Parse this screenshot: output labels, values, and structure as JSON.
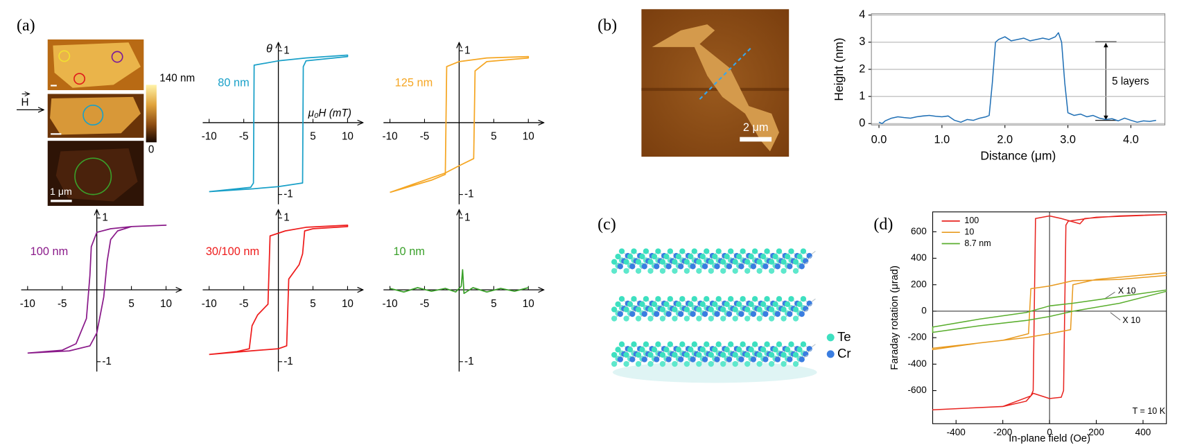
{
  "panels": [
    "(a)",
    "(b)",
    "(c)",
    "(d)"
  ],
  "afm_a": {
    "colorbar_max": "140 nm",
    "colorbar_min": "0",
    "field": "H",
    "scale_bar": "1 μm"
  },
  "afm_b": {
    "scale_bar": "2 μm"
  },
  "structure_c": {
    "atoms": [
      "Te",
      "Cr"
    ]
  },
  "chart_data": [
    {
      "type": "line",
      "x_label": "μ₀H (mT)",
      "y_label": "θ",
      "xlim": [
        -10,
        10
      ],
      "ylim": [
        -1,
        1
      ],
      "xticks": [
        -10,
        -5,
        5,
        10
      ],
      "yticks": [
        1,
        -1
      ],
      "series": [
        {
          "name": "80 nm",
          "color": "#19a0c8",
          "x": [
            -10,
            -3.6,
            0,
            3.5,
            3.6,
            4,
            10,
            10,
            4,
            0,
            -3.5,
            -3.6,
            -4,
            -10
          ],
          "values": [
            -0.96,
            -0.92,
            -0.89,
            -0.84,
            0.78,
            0.86,
            0.92,
            0.94,
            0.9,
            0.86,
            0.8,
            -0.84,
            -0.9,
            -0.96
          ]
        }
      ]
    },
    {
      "type": "line",
      "xlim": [
        -10,
        10
      ],
      "ylim": [
        -1,
        1
      ],
      "xticks": [
        -10,
        -5,
        5,
        10
      ],
      "yticks": [
        1,
        -1
      ],
      "series": [
        {
          "name": "125 nm",
          "color": "#f5a623",
          "x": [
            -10,
            -2,
            0,
            2.1,
            2.3,
            4,
            10,
            10,
            4,
            0,
            -1.8,
            -2,
            -4,
            -10
          ],
          "values": [
            -0.97,
            -0.7,
            -0.6,
            -0.5,
            0.72,
            0.85,
            0.9,
            0.92,
            0.9,
            0.85,
            0.78,
            -0.72,
            -0.8,
            -0.97
          ]
        }
      ]
    },
    {
      "type": "line",
      "xlim": [
        -10,
        10
      ],
      "ylim": [
        -1,
        1
      ],
      "xticks": [
        -10,
        -5,
        5,
        10
      ],
      "yticks": [
        1,
        -1
      ],
      "series": [
        {
          "name": "100 nm",
          "color": "#8a1a8a",
          "x": [
            -10,
            -4,
            -1,
            0,
            1,
            1.5,
            2,
            3,
            5,
            10,
            10,
            5,
            2,
            0,
            -0.8,
            -1,
            -1.5,
            -3,
            -5,
            -10
          ],
          "values": [
            -0.88,
            -0.85,
            -0.78,
            -0.6,
            -0.1,
            0.4,
            0.7,
            0.82,
            0.88,
            0.9,
            0.9,
            0.88,
            0.85,
            0.8,
            0.6,
            0.2,
            -0.4,
            -0.75,
            -0.84,
            -0.88
          ]
        }
      ]
    },
    {
      "type": "line",
      "xlim": [
        -10,
        10
      ],
      "ylim": [
        -1,
        1
      ],
      "xticks": [
        -10,
        -5,
        5,
        10
      ],
      "yticks": [
        1,
        -1
      ],
      "series": [
        {
          "name": "30/100 nm",
          "color": "#ee1c1c",
          "x": [
            -10,
            -4,
            0,
            1.2,
            1.5,
            3,
            3.5,
            3.8,
            5,
            10,
            10,
            4,
            1,
            -1.2,
            -1.5,
            -3,
            -3.8,
            -4.2,
            -6,
            -10
          ],
          "values": [
            -0.9,
            -0.85,
            -0.82,
            -0.78,
            0.15,
            0.35,
            0.5,
            0.82,
            0.85,
            0.88,
            0.9,
            0.87,
            0.82,
            0.75,
            -0.2,
            -0.35,
            -0.5,
            -0.82,
            -0.86,
            -0.9
          ]
        }
      ]
    },
    {
      "type": "line",
      "xlim": [
        -10,
        10
      ],
      "ylim": [
        -1,
        1
      ],
      "xticks": [
        -10,
        -5,
        5,
        10
      ],
      "yticks": [
        1,
        -1
      ],
      "series": [
        {
          "name": "10 nm",
          "color": "#3aa02a",
          "x": [
            -10,
            -8,
            -6,
            -4,
            -2,
            -0.5,
            0.3,
            0.5,
            0.7,
            2,
            4,
            6,
            8,
            10
          ],
          "values": [
            0.02,
            -0.03,
            0.03,
            -0.02,
            0.02,
            -0.03,
            0.05,
            0.28,
            -0.05,
            0.03,
            -0.03,
            0.02,
            -0.02,
            0.03
          ]
        }
      ]
    },
    {
      "type": "line",
      "x_label": "Distance (μm)",
      "y_label": "Height (nm)",
      "xlim": [
        -0.12,
        4.54
      ],
      "ylim": [
        -0.05,
        4.05
      ],
      "xticks": [
        {
          "value": 0,
          "label": "0.0"
        },
        {
          "value": 1,
          "label": "1.0"
        },
        {
          "value": 2,
          "label": "2.0"
        },
        {
          "value": 3,
          "label": "3.0"
        },
        {
          "value": 4,
          "label": "4.0"
        }
      ],
      "yticks": [
        0,
        1,
        2,
        3,
        4
      ],
      "grid": true,
      "annotations": [
        "5 layers"
      ],
      "series": [
        {
          "color": "#1f6fb5",
          "x": [
            0,
            0.05,
            0.1,
            0.2,
            0.3,
            0.4,
            0.5,
            0.6,
            0.7,
            0.8,
            0.9,
            1.0,
            1.1,
            1.2,
            1.3,
            1.4,
            1.5,
            1.6,
            1.7,
            1.75,
            1.8,
            1.85,
            1.9,
            2.0,
            2.1,
            2.2,
            2.3,
            2.4,
            2.5,
            2.6,
            2.7,
            2.8,
            2.85,
            2.9,
            2.95,
            3.0,
            3.1,
            3.2,
            3.3,
            3.4,
            3.5,
            3.6,
            3.7,
            3.8,
            3.9,
            4.0,
            4.1,
            4.2,
            4.3,
            4.4
          ],
          "values": [
            0.05,
            0,
            0.1,
            0.2,
            0.25,
            0.22,
            0.2,
            0.25,
            0.28,
            0.3,
            0.27,
            0.25,
            0.28,
            0.12,
            0.05,
            0.15,
            0.12,
            0.2,
            0.25,
            0.3,
            1.5,
            3.0,
            3.1,
            3.2,
            3.05,
            3.1,
            3.15,
            3.05,
            3.1,
            3.15,
            3.1,
            3.2,
            3.35,
            3.0,
            1.5,
            0.4,
            0.3,
            0.35,
            0.25,
            0.3,
            0.2,
            0.15,
            0.18,
            0.1,
            0.2,
            0.12,
            0.05,
            0.1,
            0.08,
            0.12
          ]
        }
      ]
    },
    {
      "type": "line",
      "x_label": "In-plane field (Oe)",
      "y_label": "Faraday rotation (μrad)",
      "xlim": [
        -500,
        500
      ],
      "ylim": [
        -850,
        750
      ],
      "xticks": [
        -400,
        -200,
        0,
        200,
        400
      ],
      "yticks": [
        -600,
        -400,
        -200,
        0,
        200,
        400,
        600
      ],
      "zero_lines": true,
      "legend": "upper left",
      "annotations": [
        "X 10",
        "X 10",
        "T = 10 K"
      ],
      "series": [
        {
          "name": "100",
          "color": "#e8231f",
          "x": [
            500,
            300,
            150,
            130,
            50,
            0,
            -60,
            -70,
            -80,
            -200,
            -500,
            -500,
            -200,
            -100,
            -70,
            0,
            50,
            60,
            70,
            80,
            200,
            500
          ],
          "values": [
            730,
            720,
            700,
            660,
            700,
            720,
            700,
            -600,
            -640,
            -720,
            -745,
            -745,
            -720,
            -680,
            -620,
            -660,
            -650,
            -600,
            650,
            680,
            710,
            730
          ]
        },
        {
          "name": "10",
          "color": "#e89a1f",
          "x": [
            500,
            300,
            100,
            0,
            -80,
            -90,
            -200,
            -500,
            -500,
            -300,
            -100,
            0,
            90,
            100,
            200,
            500
          ],
          "values": [
            270,
            240,
            230,
            190,
            170,
            -170,
            -220,
            -280,
            -290,
            -240,
            -200,
            -170,
            -140,
            200,
            240,
            290
          ]
        },
        {
          "name": "8.7 nm",
          "color": "#5aae2e",
          "x": [
            500,
            300,
            100,
            0,
            -100,
            -300,
            -500,
            -500,
            -300,
            -100,
            0,
            100,
            300,
            500
          ],
          "values": [
            160,
            110,
            60,
            40,
            -10,
            -60,
            -120,
            -160,
            -110,
            -70,
            -40,
            0,
            60,
            150
          ]
        }
      ]
    }
  ]
}
